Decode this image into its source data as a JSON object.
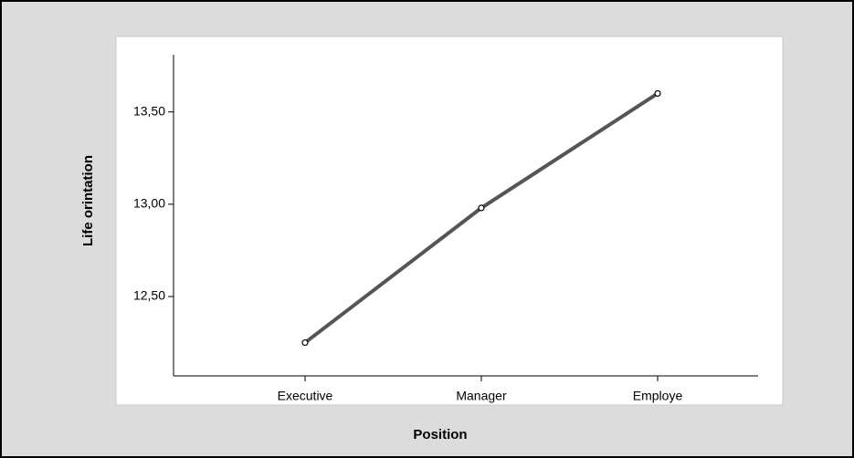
{
  "chart_data": {
    "type": "line",
    "x_label": "Position",
    "y_label": "Life orintation",
    "categories": [
      "Executive",
      "Manager",
      "Employe"
    ],
    "values": [
      12.25,
      12.98,
      13.6
    ],
    "color": "#555555",
    "ylim": [
      12.07,
      13.81
    ],
    "yticks": [
      {
        "value": 12.5,
        "label": "12,50"
      },
      {
        "value": 13.0,
        "label": "13,00"
      },
      {
        "value": 13.5,
        "label": "13,50"
      }
    ]
  }
}
